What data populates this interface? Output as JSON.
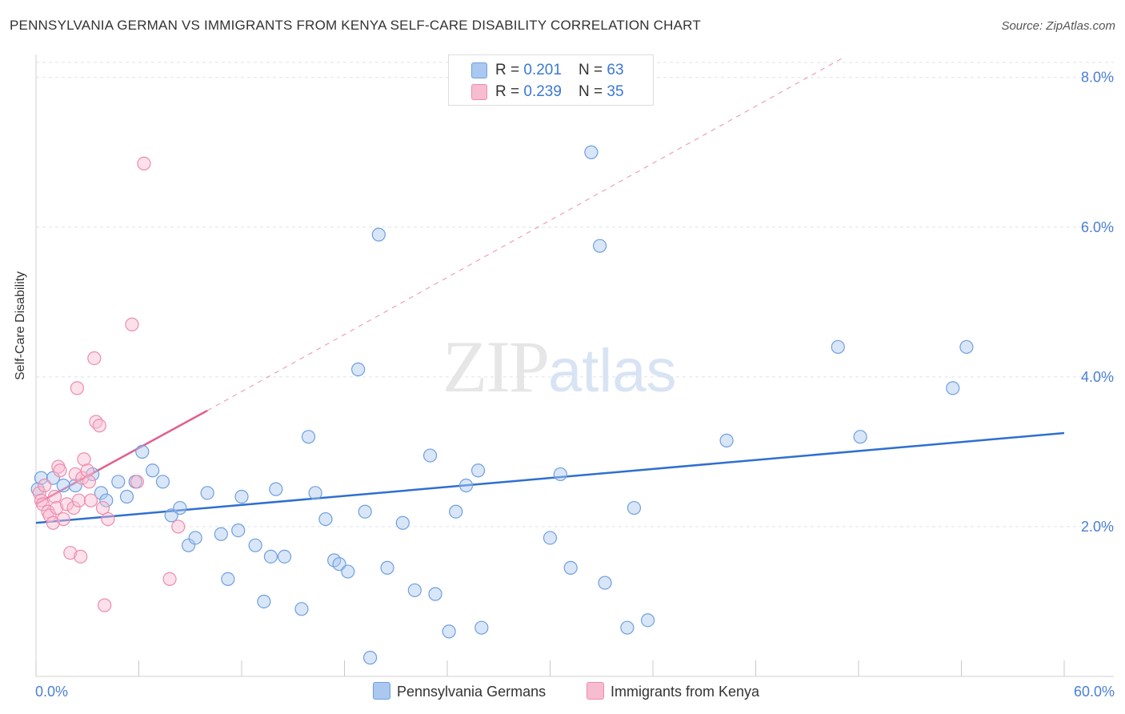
{
  "header": {
    "title": "PENNSYLVANIA GERMAN VS IMMIGRANTS FROM KENYA SELF-CARE DISABILITY CORRELATION CHART",
    "source": "Source: ZipAtlas.com"
  },
  "watermark": {
    "zip": "ZIP",
    "atlas": "atlas"
  },
  "legend_top": {
    "rows": [
      {
        "r_label": "R = ",
        "r_value": "0.201",
        "n_label": "N = ",
        "n_value": "63"
      },
      {
        "r_label": "R = ",
        "r_value": "0.239",
        "n_label": "N = ",
        "n_value": "35"
      }
    ]
  },
  "legend_bottom": {
    "series1": "Pennsylvania Germans",
    "series2": "Immigrants from Kenya"
  },
  "chart_data": {
    "type": "scatter",
    "title": "PENNSYLVANIA GERMAN VS IMMIGRANTS FROM KENYA SELF-CARE DISABILITY CORRELATION CHART",
    "xlabel": "",
    "ylabel": "Self-Care Disability",
    "xlim": [
      0,
      60
    ],
    "ylim": [
      0,
      8.0
    ],
    "x_tick_labels": [
      "0.0%",
      "60.0%"
    ],
    "y_ticks": [
      2.0,
      4.0,
      6.0,
      8.0
    ],
    "y_tick_labels": [
      "2.0%",
      "4.0%",
      "6.0%",
      "8.0%"
    ],
    "grid": true,
    "colors": {
      "series1_fill": "#aac8f0",
      "series1_stroke": "#6e9fe0",
      "series1_line": "#2f6fd0",
      "series2_fill": "#f8bcd0",
      "series2_stroke": "#ec8cac",
      "series2_line": "#e0608e",
      "tick_label": "#4a7fd4"
    },
    "series": [
      {
        "name": "Pennsylvania Germans",
        "points": [
          [
            0.1,
            2.5
          ],
          [
            0.3,
            2.65
          ],
          [
            1.0,
            2.65
          ],
          [
            1.6,
            2.55
          ],
          [
            2.3,
            2.55
          ],
          [
            3.3,
            2.7
          ],
          [
            3.8,
            2.45
          ],
          [
            4.1,
            2.35
          ],
          [
            4.8,
            2.6
          ],
          [
            5.3,
            2.4
          ],
          [
            5.8,
            2.6
          ],
          [
            6.2,
            3.0
          ],
          [
            6.8,
            2.75
          ],
          [
            7.4,
            2.6
          ],
          [
            7.9,
            2.15
          ],
          [
            8.4,
            2.25
          ],
          [
            8.9,
            1.75
          ],
          [
            9.3,
            1.85
          ],
          [
            10.0,
            2.45
          ],
          [
            10.8,
            1.9
          ],
          [
            11.2,
            1.3
          ],
          [
            11.8,
            1.95
          ],
          [
            12.0,
            2.4
          ],
          [
            12.8,
            1.75
          ],
          [
            13.3,
            1.0
          ],
          [
            13.7,
            1.6
          ],
          [
            14.0,
            2.5
          ],
          [
            14.5,
            1.6
          ],
          [
            15.5,
            0.9
          ],
          [
            15.9,
            3.2
          ],
          [
            16.3,
            2.45
          ],
          [
            16.9,
            2.1
          ],
          [
            17.4,
            1.55
          ],
          [
            17.7,
            1.5
          ],
          [
            18.2,
            1.4
          ],
          [
            18.8,
            4.1
          ],
          [
            19.2,
            2.2
          ],
          [
            20.0,
            5.9
          ],
          [
            20.5,
            1.45
          ],
          [
            21.4,
            2.05
          ],
          [
            22.1,
            1.15
          ],
          [
            23.0,
            2.95
          ],
          [
            23.3,
            1.1
          ],
          [
            24.1,
            0.6
          ],
          [
            24.5,
            2.2
          ],
          [
            25.1,
            2.55
          ],
          [
            25.8,
            2.75
          ],
          [
            26.0,
            0.65
          ],
          [
            30.0,
            1.85
          ],
          [
            30.6,
            2.7
          ],
          [
            31.2,
            1.45
          ],
          [
            32.4,
            7.0
          ],
          [
            32.9,
            5.75
          ],
          [
            33.2,
            1.25
          ],
          [
            34.5,
            0.65
          ],
          [
            34.9,
            2.25
          ],
          [
            35.7,
            0.75
          ],
          [
            40.3,
            3.15
          ],
          [
            46.8,
            4.4
          ],
          [
            48.1,
            3.2
          ],
          [
            53.5,
            3.85
          ],
          [
            54.3,
            4.4
          ],
          [
            19.5,
            0.25
          ]
        ],
        "trend": {
          "x": [
            0,
            60
          ],
          "y": [
            2.05,
            3.25
          ]
        }
      },
      {
        "name": "Immigrants from Kenya",
        "points": [
          [
            0.2,
            2.45
          ],
          [
            0.3,
            2.35
          ],
          [
            0.4,
            2.3
          ],
          [
            0.5,
            2.55
          ],
          [
            0.7,
            2.2
          ],
          [
            0.8,
            2.15
          ],
          [
            1.0,
            2.05
          ],
          [
            1.1,
            2.4
          ],
          [
            1.2,
            2.25
          ],
          [
            1.3,
            2.8
          ],
          [
            1.4,
            2.75
          ],
          [
            1.6,
            2.1
          ],
          [
            1.8,
            2.3
          ],
          [
            2.0,
            1.65
          ],
          [
            2.2,
            2.25
          ],
          [
            2.3,
            2.7
          ],
          [
            2.4,
            3.85
          ],
          [
            2.5,
            2.35
          ],
          [
            2.6,
            1.6
          ],
          [
            2.7,
            2.65
          ],
          [
            2.8,
            2.9
          ],
          [
            3.0,
            2.75
          ],
          [
            3.1,
            2.6
          ],
          [
            3.4,
            4.25
          ],
          [
            3.5,
            3.4
          ],
          [
            3.7,
            3.35
          ],
          [
            3.9,
            2.25
          ],
          [
            4.0,
            0.95
          ],
          [
            4.2,
            2.1
          ],
          [
            5.6,
            4.7
          ],
          [
            5.9,
            2.6
          ],
          [
            6.3,
            6.85
          ],
          [
            7.8,
            1.3
          ],
          [
            8.3,
            2.0
          ],
          [
            3.2,
            2.35
          ]
        ],
        "trend": {
          "x": [
            0,
            10
          ],
          "y": [
            2.3,
            3.55
          ]
        },
        "trend_extended": {
          "x": [
            10,
            47
          ],
          "y": [
            3.55,
            8.25
          ]
        }
      }
    ]
  }
}
